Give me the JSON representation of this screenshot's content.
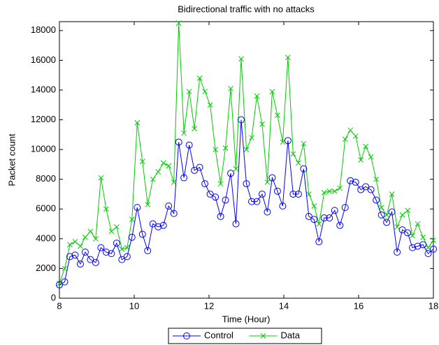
{
  "chart_data": {
    "type": "line",
    "title": "Bidirectional traffic with no attacks",
    "x_label": "Time (Hour)",
    "y_label": "Packet count",
    "x": [
      8,
      8.14,
      8.28,
      8.42,
      8.56,
      8.69,
      8.83,
      8.97,
      9.11,
      9.25,
      9.39,
      9.53,
      9.67,
      9.81,
      9.94,
      10.08,
      10.22,
      10.36,
      10.5,
      10.64,
      10.78,
      10.92,
      11.06,
      11.19,
      11.33,
      11.47,
      11.61,
      11.75,
      11.89,
      12.03,
      12.17,
      12.31,
      12.44,
      12.58,
      12.72,
      12.86,
      13,
      13.14,
      13.28,
      13.42,
      13.56,
      13.69,
      13.83,
      13.97,
      14.11,
      14.25,
      14.39,
      14.53,
      14.67,
      14.81,
      14.94,
      15.08,
      15.22,
      15.36,
      15.5,
      15.64,
      15.78,
      15.92,
      16.06,
      16.19,
      16.33,
      16.47,
      16.61,
      16.75,
      16.89,
      17.03,
      17.17,
      17.31,
      17.44,
      17.58,
      17.72,
      17.86,
      18
    ],
    "series": [
      {
        "name": "Control",
        "color": "#0000ff",
        "marker": "o",
        "values": [
          900,
          1100,
          2800,
          2900,
          2300,
          3100,
          2600,
          2400,
          3400,
          3100,
          3000,
          3700,
          2600,
          2800,
          4100,
          6100,
          4300,
          3200,
          5000,
          4800,
          4900,
          6200,
          5700,
          10500,
          8100,
          10300,
          8600,
          8800,
          7700,
          7000,
          6800,
          5500,
          6600,
          8400,
          5000,
          12000,
          7700,
          6500,
          6500,
          7000,
          5800,
          8100,
          7200,
          6200,
          10600,
          7000,
          7000,
          8700,
          5500,
          5300,
          3800,
          5400,
          5400,
          5900,
          4900,
          6100,
          7900,
          7800,
          7300,
          7500,
          7300,
          6600,
          5600,
          5100,
          5800,
          3100,
          4600,
          4400,
          3400,
          3500,
          3600,
          3000,
          3300
        ]
      },
      {
        "name": "Data",
        "color": "#00cc00",
        "marker": "x",
        "values": [
          1000,
          2000,
          3600,
          3800,
          3500,
          4100,
          4500,
          4000,
          8100,
          6000,
          4500,
          4800,
          3300,
          3400,
          5300,
          11800,
          9200,
          6300,
          8000,
          8500,
          9100,
          8900,
          7800,
          18500,
          11100,
          13900,
          11400,
          14800,
          13900,
          13000,
          10000,
          7700,
          10100,
          14100,
          8700,
          16100,
          10000,
          10800,
          13600,
          11700,
          7800,
          13900,
          12300,
          10500,
          16200,
          9700,
          9100,
          10400,
          7000,
          6200,
          5000,
          7100,
          7200,
          7200,
          7400,
          10700,
          11300,
          10900,
          9300,
          10200,
          9500,
          8000,
          6100,
          5600,
          7000,
          4800,
          5600,
          5900,
          4200,
          5000,
          4100,
          3400,
          3900
        ]
      }
    ],
    "xlim": [
      8,
      18
    ],
    "xticks": [
      8,
      10,
      12,
      14,
      16,
      18
    ],
    "ylim": [
      0,
      18600
    ],
    "yticks": [
      0,
      2000,
      4000,
      6000,
      8000,
      10000,
      12000,
      14000,
      16000,
      18000
    ],
    "grid": false,
    "legend": "below"
  }
}
